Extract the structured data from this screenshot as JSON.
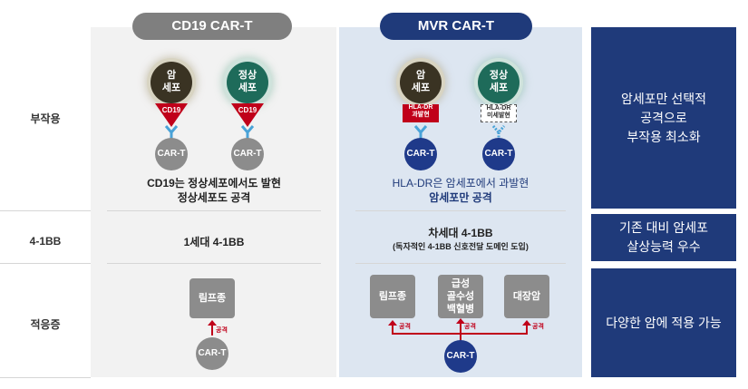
{
  "columns": {
    "cd19": "CD19 CAR-T",
    "mvr": "MVR CAR-T"
  },
  "rows": {
    "side_effect": "부작용",
    "bb": "4-1BB",
    "indication": "적응증"
  },
  "cd19": {
    "cell_cancer": "암\n세포",
    "cell_normal": "정상\n세포",
    "antigen": "CD19",
    "cart": "CAR-T",
    "side_effect_text": "CD19는 정상세포에서도 발현\n정상세포도 공격",
    "bb_text": "1세대 4-1BB",
    "indication_box": "림프종",
    "attack_label": "공격"
  },
  "mvr": {
    "cell_cancer": "암\n세포",
    "cell_normal": "정상\n세포",
    "hla_cancer": "HLA-DR\n과발현",
    "hla_normal": "HLA-DR\n미세발현",
    "cart": "CAR-T",
    "side_effect_line1": "HLA-DR은 암세포에서 과발현",
    "side_effect_line2": "암세포만 공격",
    "bb_title": "차세대 4-1BB",
    "bb_sub": "(독자적인 4-1BB 신호전달 도메인 도입)",
    "indication_boxes": [
      "림프종",
      "급성\n골수성\n백혈병",
      "대장암"
    ],
    "attack_label": "공격"
  },
  "summary": {
    "side_effect": "암세포만 선택적\n공격으로\n부작용 최소화",
    "bb": "기존 대비 암세포\n살상능력 우수",
    "indication": "다양한 암에 적용 가능"
  },
  "colors": {
    "navy": "#1f3a7a",
    "gray": "#8c8c8c",
    "red": "#c0001a"
  }
}
